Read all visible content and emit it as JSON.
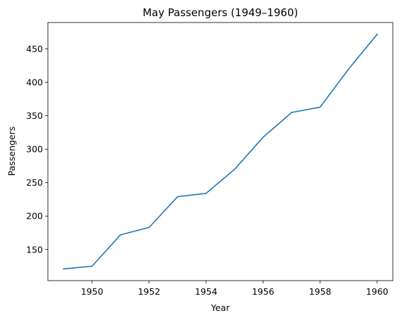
{
  "chart_data": {
    "type": "line",
    "title": "May Passengers (1949–1960)",
    "xlabel": "Year",
    "ylabel": "Passengers",
    "x": [
      1949,
      1950,
      1951,
      1952,
      1953,
      1954,
      1955,
      1956,
      1957,
      1958,
      1959,
      1960
    ],
    "series": [
      {
        "values": [
          121,
          125,
          172,
          183,
          229,
          234,
          270,
          318,
          355,
          363,
          420,
          472
        ],
        "color": "#1f77b4"
      }
    ],
    "xticks": [
      1950,
      1952,
      1954,
      1956,
      1958,
      1960
    ],
    "yticks": [
      150,
      200,
      250,
      300,
      350,
      400,
      450
    ],
    "xlim": [
      1948.45,
      1960.55
    ],
    "ylim": [
      103.45,
      489.55
    ],
    "grid": false,
    "legend": false
  }
}
